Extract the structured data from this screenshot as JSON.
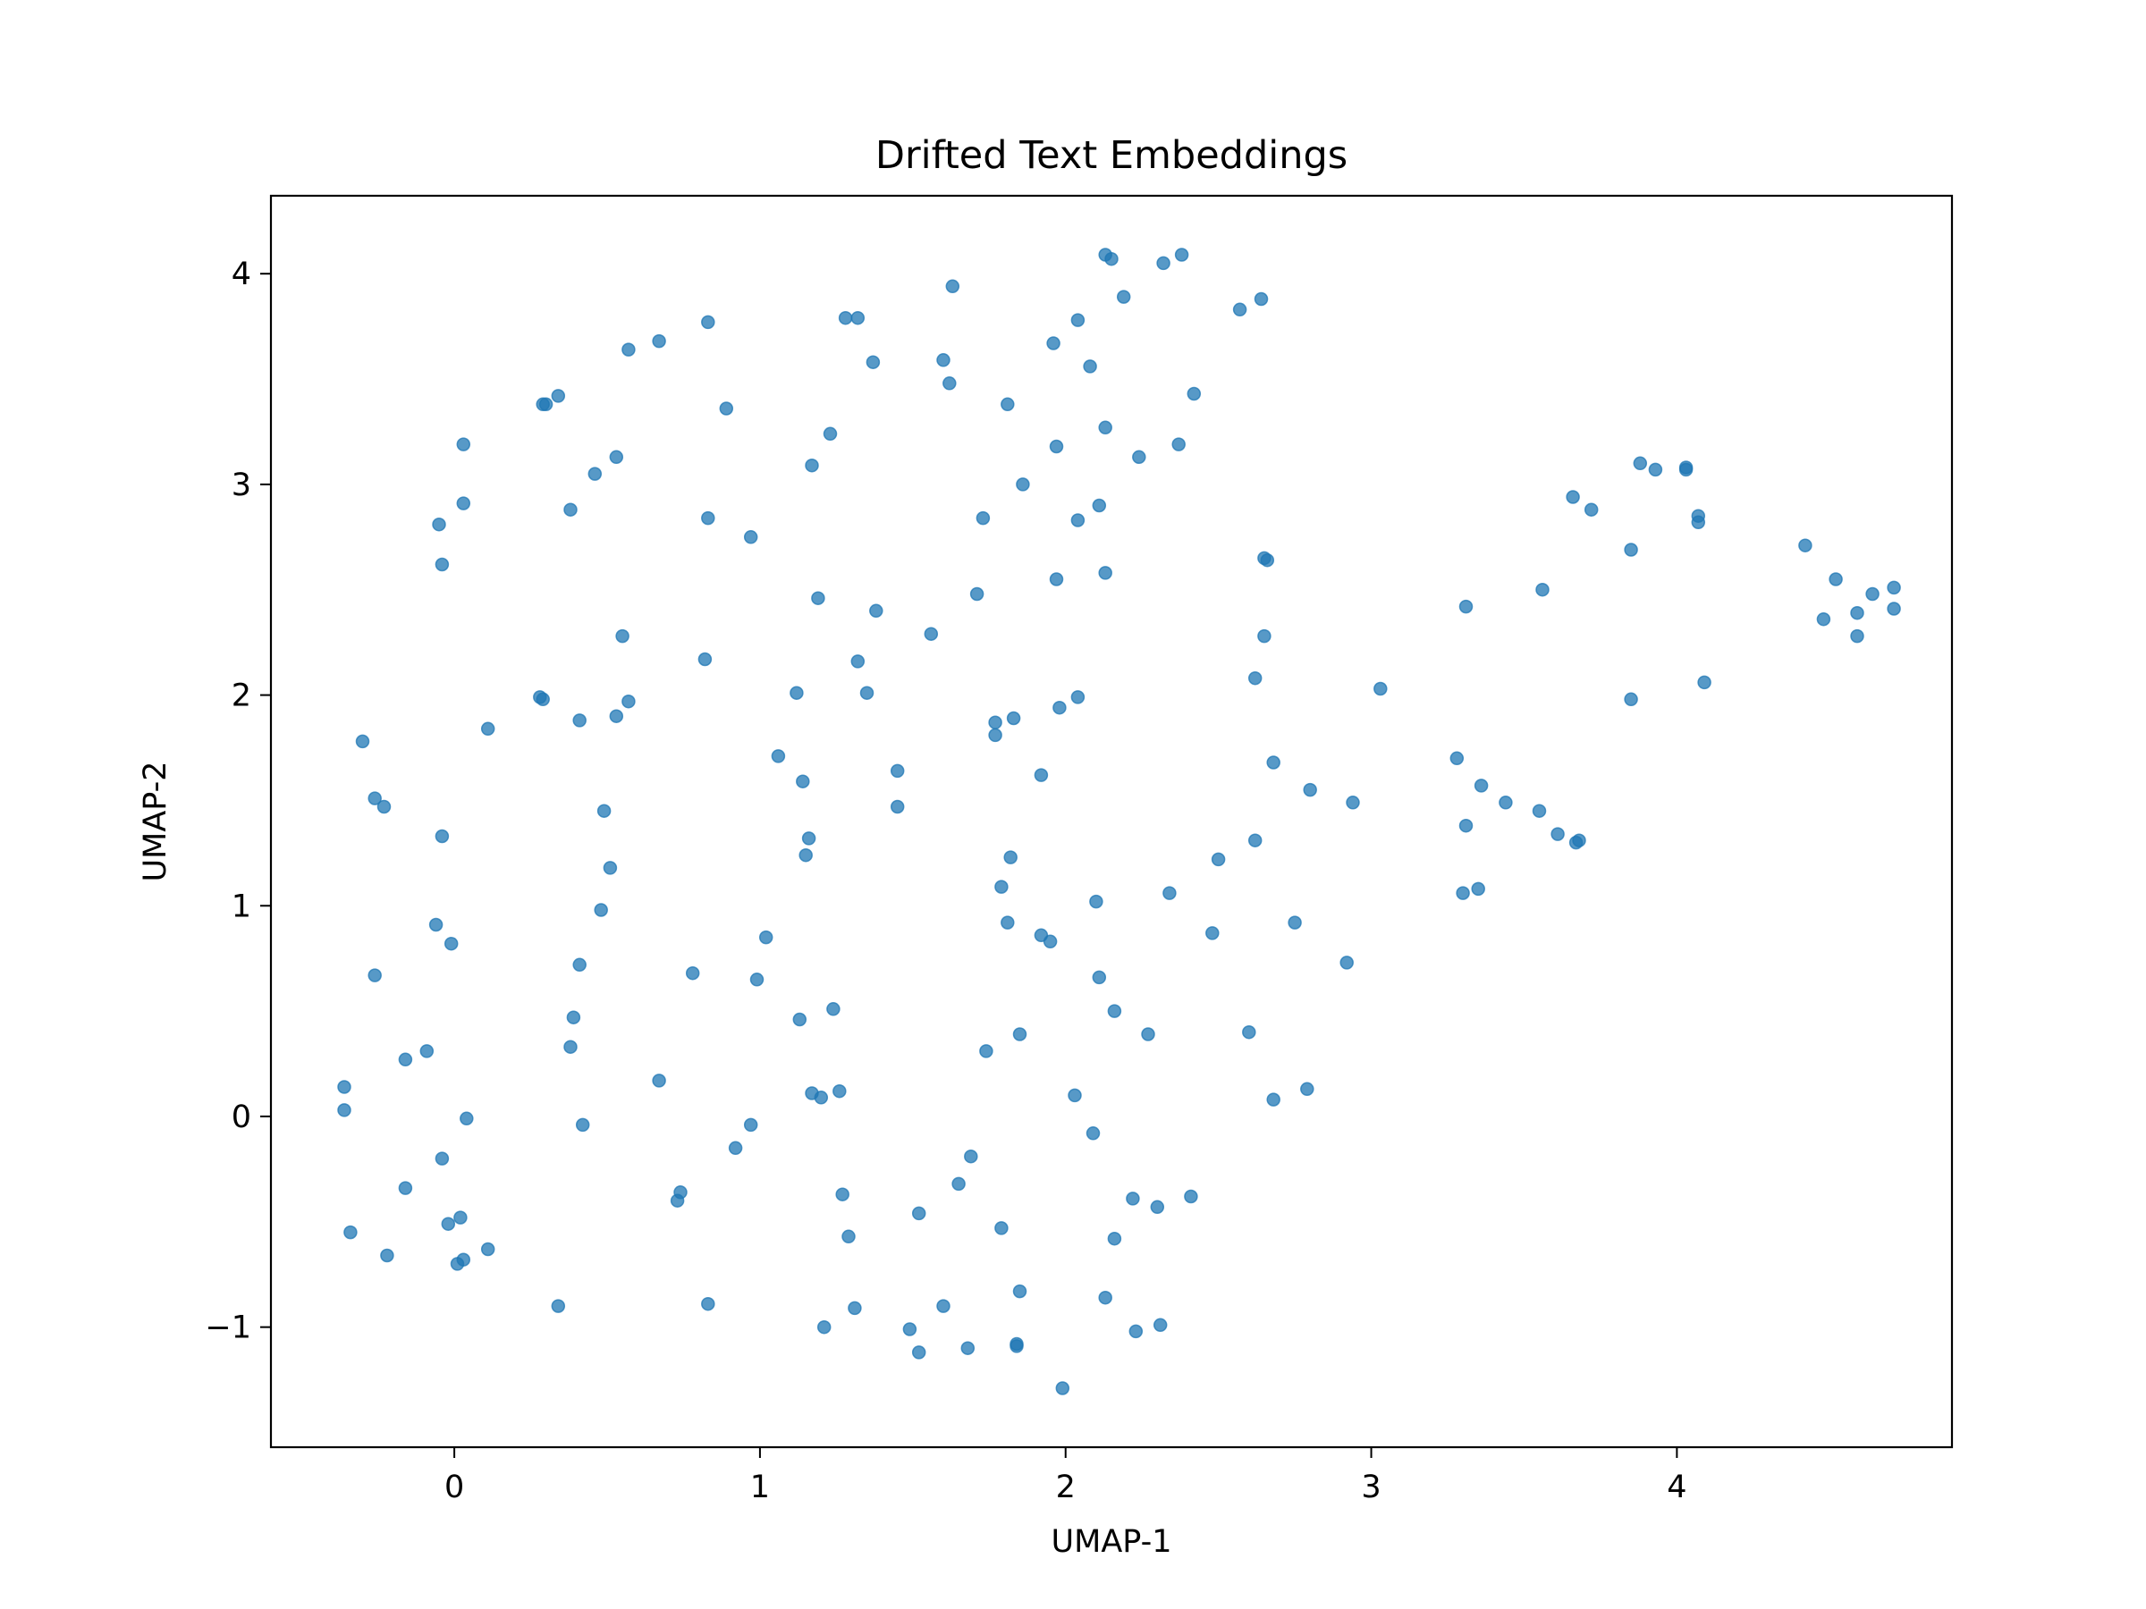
{
  "chart_data": {
    "type": "scatter",
    "title": "Drifted Text Embeddings",
    "xlabel": "UMAP-1",
    "ylabel": "UMAP-2",
    "xlim": [
      -0.6,
      4.9
    ],
    "ylim": [
      -1.57,
      4.37
    ],
    "xticks": [
      0,
      1,
      2,
      3,
      4
    ],
    "yticks": [
      -1,
      0,
      1,
      2,
      3,
      4
    ],
    "grid": false,
    "marker_color": "#1f77b4",
    "marker_alpha": 0.75,
    "points": [
      [
        2.13,
        4.09
      ],
      [
        2.15,
        4.07
      ],
      [
        2.32,
        4.05
      ],
      [
        2.38,
        4.09
      ],
      [
        2.19,
        3.89
      ],
      [
        2.57,
        3.83
      ],
      [
        2.64,
        3.88
      ],
      [
        1.63,
        3.94
      ],
      [
        1.28,
        3.79
      ],
      [
        1.32,
        3.79
      ],
      [
        0.83,
        3.77
      ],
      [
        0.67,
        3.68
      ],
      [
        0.57,
        3.64
      ],
      [
        2.04,
        3.78
      ],
      [
        1.96,
        3.67
      ],
      [
        1.37,
        3.58
      ],
      [
        1.6,
        3.59
      ],
      [
        1.62,
        3.48
      ],
      [
        2.08,
        3.56
      ],
      [
        0.29,
        3.38
      ],
      [
        0.3,
        3.38
      ],
      [
        0.34,
        3.42
      ],
      [
        1.81,
        3.38
      ],
      [
        2.42,
        3.43
      ],
      [
        0.89,
        3.36
      ],
      [
        1.23,
        3.24
      ],
      [
        2.13,
        3.27
      ],
      [
        0.03,
        3.19
      ],
      [
        0.53,
        3.13
      ],
      [
        1.97,
        3.18
      ],
      [
        2.24,
        3.13
      ],
      [
        2.37,
        3.19
      ],
      [
        1.17,
        3.09
      ],
      [
        0.46,
        3.05
      ],
      [
        1.86,
        3.0
      ],
      [
        0.03,
        2.91
      ],
      [
        -0.05,
        2.81
      ],
      [
        0.38,
        2.88
      ],
      [
        0.83,
        2.84
      ],
      [
        0.97,
        2.75
      ],
      [
        1.73,
        2.84
      ],
      [
        2.04,
        2.83
      ],
      [
        2.11,
        2.9
      ],
      [
        -0.04,
        2.62
      ],
      [
        2.13,
        2.58
      ],
      [
        1.97,
        2.55
      ],
      [
        2.65,
        2.65
      ],
      [
        2.66,
        2.64
      ],
      [
        1.19,
        2.46
      ],
      [
        1.38,
        2.4
      ],
      [
        1.71,
        2.48
      ],
      [
        0.55,
        2.28
      ],
      [
        1.56,
        2.29
      ],
      [
        2.65,
        2.28
      ],
      [
        0.82,
        2.17
      ],
      [
        1.32,
        2.16
      ],
      [
        2.62,
        2.08
      ],
      [
        3.03,
        2.03
      ],
      [
        0.28,
        1.99
      ],
      [
        0.29,
        1.98
      ],
      [
        0.57,
        1.97
      ],
      [
        1.12,
        2.01
      ],
      [
        1.35,
        2.01
      ],
      [
        2.04,
        1.99
      ],
      [
        0.41,
        1.88
      ],
      [
        0.53,
        1.9
      ],
      [
        0.11,
        1.84
      ],
      [
        1.77,
        1.87
      ],
      [
        1.83,
        1.89
      ],
      [
        1.98,
        1.94
      ],
      [
        1.77,
        1.81
      ],
      [
        -0.3,
        1.78
      ],
      [
        1.06,
        1.71
      ],
      [
        1.45,
        1.64
      ],
      [
        1.92,
        1.62
      ],
      [
        2.68,
        1.68
      ],
      [
        1.14,
        1.59
      ],
      [
        2.8,
        1.55
      ],
      [
        -0.26,
        1.51
      ],
      [
        -0.23,
        1.47
      ],
      [
        0.49,
        1.45
      ],
      [
        1.45,
        1.47
      ],
      [
        2.94,
        1.49
      ],
      [
        -0.04,
        1.33
      ],
      [
        1.16,
        1.32
      ],
      [
        2.62,
        1.31
      ],
      [
        1.15,
        1.24
      ],
      [
        1.82,
        1.23
      ],
      [
        2.5,
        1.22
      ],
      [
        0.51,
        1.18
      ],
      [
        1.79,
        1.09
      ],
      [
        2.34,
        1.06
      ],
      [
        2.1,
        1.02
      ],
      [
        0.48,
        0.98
      ],
      [
        1.81,
        0.92
      ],
      [
        2.75,
        0.92
      ],
      [
        -0.06,
        0.91
      ],
      [
        -0.01,
        0.82
      ],
      [
        1.02,
        0.85
      ],
      [
        1.92,
        0.86
      ],
      [
        1.95,
        0.83
      ],
      [
        2.48,
        0.87
      ],
      [
        0.41,
        0.72
      ],
      [
        2.92,
        0.73
      ],
      [
        -0.26,
        0.67
      ],
      [
        0.78,
        0.68
      ],
      [
        0.99,
        0.65
      ],
      [
        2.11,
        0.66
      ],
      [
        1.13,
        0.46
      ],
      [
        1.24,
        0.51
      ],
      [
        2.16,
        0.5
      ],
      [
        0.39,
        0.47
      ],
      [
        1.85,
        0.39
      ],
      [
        2.27,
        0.39
      ],
      [
        2.6,
        0.4
      ],
      [
        0.38,
        0.33
      ],
      [
        -0.09,
        0.31
      ],
      [
        -0.16,
        0.27
      ],
      [
        1.74,
        0.31
      ],
      [
        0.67,
        0.17
      ],
      [
        -0.36,
        0.14
      ],
      [
        1.17,
        0.11
      ],
      [
        1.2,
        0.09
      ],
      [
        1.26,
        0.12
      ],
      [
        2.03,
        0.1
      ],
      [
        2.68,
        0.08
      ],
      [
        2.79,
        0.13
      ],
      [
        -0.36,
        0.03
      ],
      [
        0.04,
        -0.01
      ],
      [
        0.42,
        -0.04
      ],
      [
        0.97,
        -0.04
      ],
      [
        0.92,
        -0.15
      ],
      [
        -0.04,
        -0.2
      ],
      [
        1.69,
        -0.19
      ],
      [
        2.09,
        -0.08
      ],
      [
        -0.16,
        -0.34
      ],
      [
        0.74,
        -0.36
      ],
      [
        1.65,
        -0.32
      ],
      [
        0.73,
        -0.4
      ],
      [
        1.27,
        -0.37
      ],
      [
        2.22,
        -0.39
      ],
      [
        2.41,
        -0.38
      ],
      [
        0.02,
        -0.48
      ],
      [
        -0.02,
        -0.51
      ],
      [
        1.52,
        -0.46
      ],
      [
        2.3,
        -0.43
      ],
      [
        -0.34,
        -0.55
      ],
      [
        1.29,
        -0.57
      ],
      [
        1.79,
        -0.53
      ],
      [
        2.16,
        -0.58
      ],
      [
        0.11,
        -0.63
      ],
      [
        -0.22,
        -0.66
      ],
      [
        0.03,
        -0.68
      ],
      [
        0.01,
        -0.7
      ],
      [
        1.85,
        -0.83
      ],
      [
        2.13,
        -0.86
      ],
      [
        0.34,
        -0.9
      ],
      [
        0.83,
        -0.89
      ],
      [
        1.31,
        -0.91
      ],
      [
        1.6,
        -0.9
      ],
      [
        1.21,
        -1.0
      ],
      [
        1.49,
        -1.01
      ],
      [
        2.23,
        -1.02
      ],
      [
        2.31,
        -0.99
      ],
      [
        1.52,
        -1.12
      ],
      [
        1.68,
        -1.1
      ],
      [
        1.84,
        -1.09
      ],
      [
        1.84,
        -1.08
      ],
      [
        1.99,
        -1.29
      ],
      [
        3.28,
        1.7
      ],
      [
        3.36,
        1.57
      ],
      [
        3.44,
        1.49
      ],
      [
        3.55,
        1.45
      ],
      [
        3.61,
        1.34
      ],
      [
        3.67,
        1.3
      ],
      [
        3.68,
        1.31
      ],
      [
        3.31,
        1.38
      ],
      [
        3.3,
        1.06
      ],
      [
        3.35,
        1.08
      ],
      [
        3.31,
        2.42
      ],
      [
        3.56,
        2.5
      ],
      [
        3.66,
        2.94
      ],
      [
        3.72,
        2.88
      ],
      [
        3.85,
        2.69
      ],
      [
        3.88,
        3.1
      ],
      [
        3.93,
        3.07
      ],
      [
        4.03,
        3.08
      ],
      [
        4.03,
        3.07
      ],
      [
        4.07,
        2.85
      ],
      [
        4.07,
        2.82
      ],
      [
        4.09,
        2.06
      ],
      [
        3.85,
        1.98
      ],
      [
        4.42,
        2.71
      ],
      [
        4.52,
        2.55
      ],
      [
        4.48,
        2.36
      ],
      [
        4.59,
        2.39
      ],
      [
        4.59,
        2.28
      ],
      [
        4.64,
        2.48
      ],
      [
        4.71,
        2.51
      ],
      [
        4.71,
        2.41
      ]
    ]
  }
}
